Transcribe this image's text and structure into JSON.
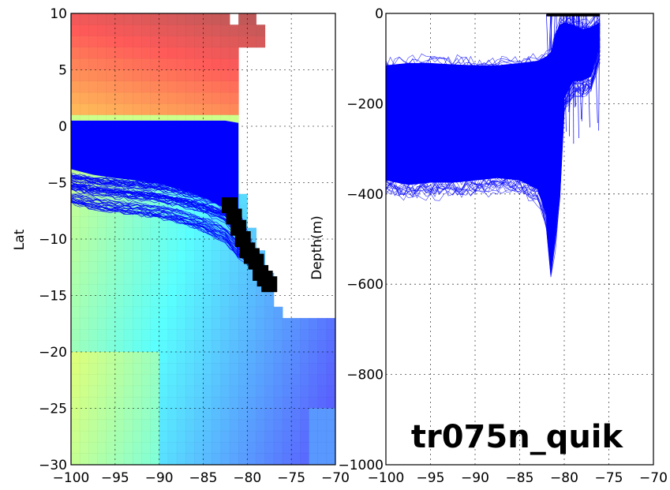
{
  "chart_data": [
    {
      "type": "heatmap",
      "panel": "map",
      "xlabel": "",
      "ylabel": "Lat",
      "xlim": [
        -100,
        -70
      ],
      "ylim": [
        -30,
        10
      ],
      "xticks": [
        -100,
        -95,
        -90,
        -85,
        -80,
        -75,
        -70
      ],
      "yticks": [
        -30,
        -25,
        -20,
        -15,
        -10,
        -5,
        0,
        5,
        10
      ],
      "xtick_labels": [
        "−100",
        "−95",
        "−90",
        "−85",
        "−80",
        "−75",
        "−70"
      ],
      "ytick_labels": [
        "−30",
        "−25",
        "−20",
        "−15",
        "−10",
        "−5",
        "0",
        "5",
        "10"
      ],
      "grid": true,
      "track_color": "#0000ff",
      "release_marker_color": "#000000",
      "release_points": [
        [
          -82,
          -7
        ],
        [
          -81.5,
          -8
        ],
        [
          -81,
          -9
        ],
        [
          -80.5,
          -10
        ],
        [
          -80,
          -11
        ],
        [
          -79.5,
          -11.5
        ],
        [
          -79,
          -12
        ],
        [
          -78.5,
          -13
        ],
        [
          -78,
          -13.5
        ],
        [
          -77.5,
          -14
        ]
      ],
      "track_envelope_lat": {
        "lon": [
          -100,
          -97.5,
          -95,
          -92.5,
          -90,
          -87.5,
          -85,
          -82.5,
          -81
        ],
        "north": [
          0.5,
          0.5,
          0.5,
          0.5,
          0.5,
          0.5,
          0.5,
          0.5,
          0.3
        ],
        "south": [
          -7,
          -7.5,
          -7.8,
          -8,
          -8.3,
          -8.8,
          -9.5,
          -10.5,
          -12
        ]
      }
    },
    {
      "type": "line",
      "panel": "depth",
      "xlabel": "",
      "ylabel": "Depth(m)",
      "xlim": [
        -100,
        -70
      ],
      "ylim": [
        -1000,
        0
      ],
      "xticks": [
        -100,
        -95,
        -90,
        -85,
        -80,
        -75,
        -70
      ],
      "yticks": [
        -1000,
        -800,
        -600,
        -400,
        -200,
        0
      ],
      "xtick_labels": [
        "−100",
        "−95",
        "−90",
        "−85",
        "−80",
        "−75",
        "−70"
      ],
      "ytick_labels": [
        "−1000",
        "−800",
        "−600",
        "−400",
        "−200",
        "0"
      ],
      "grid": true,
      "series_color": "#0000ff",
      "depth_envelope": {
        "lon": [
          -100,
          -97.5,
          -95,
          -92.5,
          -90,
          -87.5,
          -85,
          -83,
          -82,
          -81.5,
          -81,
          -80.5,
          -80,
          -79,
          -78,
          -77,
          -76
        ],
        "upper": [
          -100,
          -95,
          -95,
          -98,
          -100,
          -100,
          -95,
          -90,
          -80,
          -70,
          -30,
          -10,
          -5,
          -10,
          -20,
          -15,
          -5
        ],
        "lower": [
          -400,
          -410,
          -405,
          -405,
          -400,
          -395,
          -400,
          -420,
          -480,
          -605,
          -520,
          -420,
          -220,
          -180,
          -180,
          -170,
          -100
        ]
      }
    }
  ],
  "annotation": {
    "text": "tr075n_quik"
  }
}
